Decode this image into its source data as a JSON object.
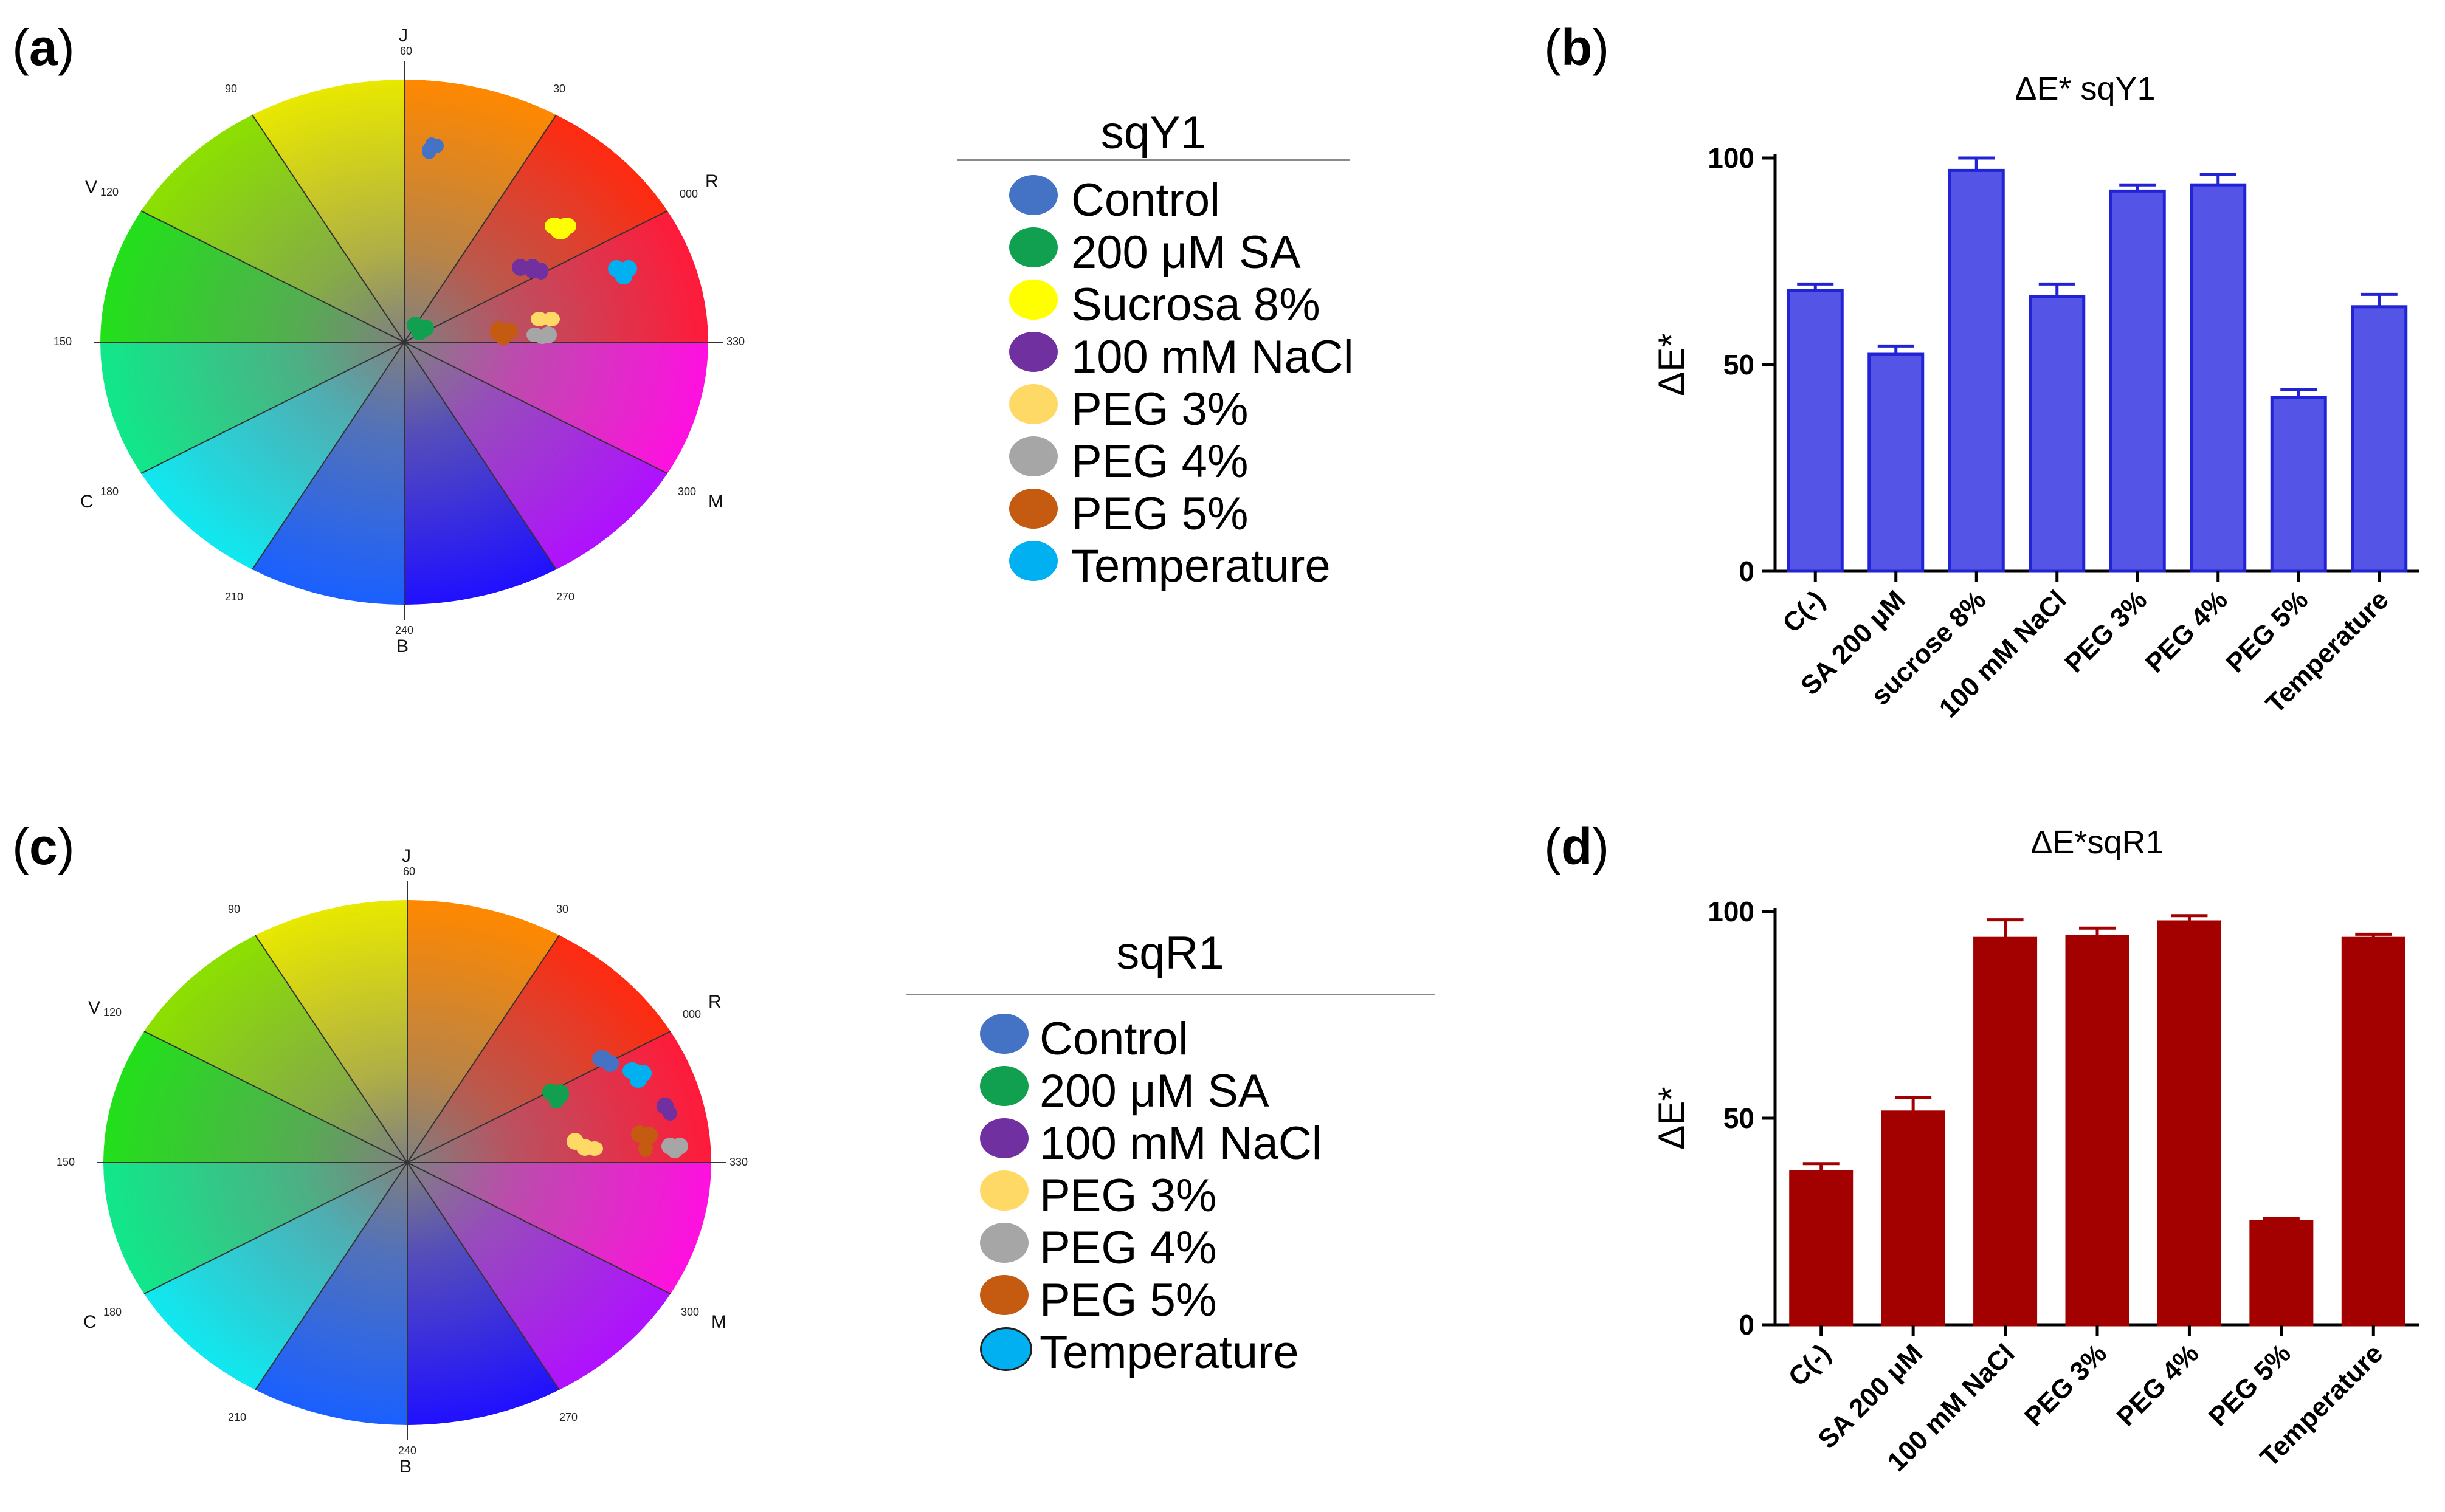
{
  "panels": {
    "a": "a",
    "b": "b",
    "c": "c",
    "d": "d"
  },
  "wheel": {
    "labels": {
      "j": "J",
      "r": "R",
      "v": "V",
      "c": "C",
      "b": "B",
      "m": "M"
    },
    "degrees": {
      "d60": "60",
      "d30": "30",
      "d000": "000",
      "d330": "330",
      "d300": "300",
      "d270": "270",
      "d240": "240",
      "d210": "210",
      "d180": "180",
      "d150": "150",
      "d120": "120",
      "d90": "90"
    }
  },
  "legend_top": {
    "title": "sqY1",
    "items": [
      {
        "label": "Control",
        "color": "#4472c4"
      },
      {
        "label": "200 μM SA",
        "color": "#10a050"
      },
      {
        "label": "Sucrosa 8%",
        "color": "#ffff00"
      },
      {
        "label": "100 mM  NaCl",
        "color": "#7030a0"
      },
      {
        "label": "PEG 3%",
        "color": "#ffd966"
      },
      {
        "label": "PEG 4%",
        "color": "#a6a6a6"
      },
      {
        "label": "PEG 5%",
        "color": "#c55a11"
      },
      {
        "label": "Temperature",
        "color": "#00b0f0"
      }
    ]
  },
  "legend_bottom": {
    "title": "sqR1",
    "items": [
      {
        "label": "Control",
        "color": "#4472c4"
      },
      {
        "label": "200 μM SA",
        "color": "#10a050"
      },
      {
        "label": "100 mM  NaCl",
        "color": "#7030a0"
      },
      {
        "label": "PEG 3%",
        "color": "#ffd966"
      },
      {
        "label": "PEG 4%",
        "color": "#a6a6a6"
      },
      {
        "label": "PEG 5%",
        "color": "#c55a11"
      },
      {
        "label": "Temperature",
        "color": "#00b0f0"
      }
    ]
  },
  "chart_data": [
    {
      "type": "bar",
      "title": "ΔE* sqY1",
      "ylabel": "ΔE*",
      "xlabel": "",
      "ylim": [
        0,
        100
      ],
      "yticks": [
        "0",
        "50",
        "100"
      ],
      "categories": [
        "C(-)",
        "SA 200 μM",
        "sucrose 8%",
        "100 mM NaCl",
        "PEG 3%",
        "PEG 4%",
        "PEG 5%",
        "Temperature"
      ],
      "values": [
        68,
        52.5,
        97,
        66.5,
        92,
        93.5,
        42,
        64
      ],
      "errors": [
        1.5,
        2,
        3,
        3,
        1.5,
        2.5,
        2,
        3
      ],
      "color": "#5454e6",
      "edge": "#2323d6"
    },
    {
      "type": "bar",
      "title": "ΔE*sqR1",
      "ylabel": "ΔE*",
      "xlabel": "",
      "ylim": [
        0,
        100
      ],
      "yticks": [
        "0",
        "50",
        "100"
      ],
      "categories": [
        "C(-)",
        "SA 200 μM",
        "100 mM NaCl",
        "PEG 3%",
        "PEG 4%",
        "PEG 5%",
        "Temperature"
      ],
      "values": [
        37,
        51.5,
        93.5,
        94,
        97.5,
        25,
        93.5
      ],
      "errors": [
        2,
        3.5,
        4.5,
        2,
        1.5,
        0.8,
        1
      ],
      "color": "#a30000",
      "edge": "#a30000"
    }
  ]
}
